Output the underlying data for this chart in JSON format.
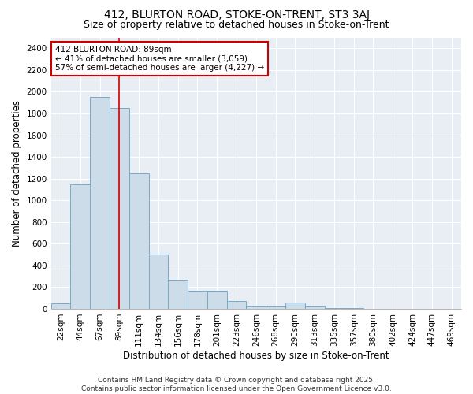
{
  "title1": "412, BLURTON ROAD, STOKE-ON-TRENT, ST3 3AJ",
  "title2": "Size of property relative to detached houses in Stoke-on-Trent",
  "xlabel": "Distribution of detached houses by size in Stoke-on-Trent",
  "ylabel": "Number of detached properties",
  "categories": [
    "22sqm",
    "44sqm",
    "67sqm",
    "89sqm",
    "111sqm",
    "134sqm",
    "156sqm",
    "178sqm",
    "201sqm",
    "223sqm",
    "246sqm",
    "268sqm",
    "290sqm",
    "313sqm",
    "335sqm",
    "357sqm",
    "380sqm",
    "402sqm",
    "424sqm",
    "447sqm",
    "469sqm"
  ],
  "values": [
    50,
    1150,
    1950,
    1850,
    1250,
    500,
    270,
    170,
    170,
    75,
    30,
    30,
    55,
    30,
    10,
    5,
    3,
    2,
    1,
    1,
    0
  ],
  "bar_color": "#ccdce8",
  "bar_edge_color": "#7aaac8",
  "red_line_index": 3,
  "annotation_line1": "412 BLURTON ROAD: 89sqm",
  "annotation_line2": "← 41% of detached houses are smaller (3,059)",
  "annotation_line3": "57% of semi-detached houses are larger (4,227) →",
  "annotation_box_color": "white",
  "annotation_box_edge_color": "#cc0000",
  "red_line_color": "#cc0000",
  "background_color": "#ffffff",
  "plot_bg_color": "#e8eef4",
  "ylim": [
    0,
    2500
  ],
  "yticks": [
    0,
    200,
    400,
    600,
    800,
    1000,
    1200,
    1400,
    1600,
    1800,
    2000,
    2200,
    2400
  ],
  "footer1": "Contains HM Land Registry data © Crown copyright and database right 2025.",
  "footer2": "Contains public sector information licensed under the Open Government Licence v3.0.",
  "title1_fontsize": 10,
  "title2_fontsize": 9,
  "xlabel_fontsize": 8.5,
  "ylabel_fontsize": 8.5,
  "tick_fontsize": 7.5,
  "annotation_fontsize": 7.5,
  "footer_fontsize": 6.5
}
